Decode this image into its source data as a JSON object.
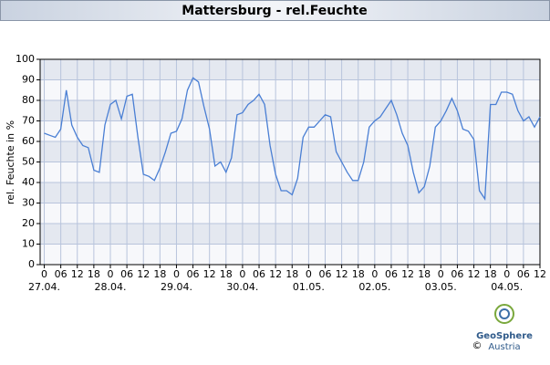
{
  "chart_data": {
    "type": "line",
    "title": "Mattersburg - rel.Feuchte",
    "y_label": "rel. Feuchte in %",
    "x": [
      0,
      2,
      4,
      6,
      8,
      10,
      12,
      14,
      16,
      18,
      20,
      22,
      24,
      26,
      28,
      30,
      32,
      34,
      36,
      38,
      40,
      42,
      44,
      46,
      48,
      50,
      52,
      54,
      56,
      58,
      60,
      62,
      64,
      66,
      68,
      70,
      72,
      74,
      76,
      78,
      80,
      82,
      84,
      86,
      88,
      90,
      92,
      94,
      96,
      98,
      100,
      102,
      104,
      106,
      108,
      110,
      112,
      114,
      116,
      118,
      120,
      122,
      124,
      126,
      128,
      130,
      132,
      134,
      136,
      138,
      140,
      142,
      144,
      146,
      148,
      150,
      152,
      154,
      156,
      158,
      160,
      162,
      164,
      166,
      168,
      170,
      172,
      174,
      176,
      178,
      180
    ],
    "series": [
      {
        "name": "rel. Feuchte",
        "color": "#4a7fd4",
        "values": [
          64,
          63,
          62,
          66,
          85,
          68,
          62,
          58,
          57,
          46,
          45,
          68,
          78,
          80,
          71,
          82,
          83,
          62,
          44,
          43,
          41,
          47,
          55,
          64,
          65,
          71,
          85,
          91,
          89,
          77,
          66,
          48,
          50,
          45,
          52,
          73,
          74,
          78,
          80,
          83,
          78,
          58,
          44,
          36,
          36,
          34,
          42,
          62,
          67,
          67,
          70,
          73,
          72,
          55,
          50,
          45,
          41,
          41,
          50,
          67,
          70,
          72,
          76,
          80,
          73,
          64,
          58,
          45,
          35,
          38,
          48,
          67,
          70,
          75,
          81,
          75,
          66,
          65,
          61,
          36,
          32,
          78,
          78,
          84,
          84,
          83,
          75,
          70,
          72,
          67,
          72
        ]
      }
    ],
    "xlim": [
      -1.5,
      180
    ],
    "ylim": [
      0,
      100
    ],
    "yticks": [
      0,
      10,
      20,
      30,
      40,
      50,
      60,
      70,
      80,
      90,
      100
    ],
    "xticks": [
      {
        "value": 0,
        "label": "0"
      },
      {
        "value": 6,
        "label": "06"
      },
      {
        "value": 12,
        "label": "12"
      },
      {
        "value": 18,
        "label": "18"
      },
      {
        "value": 24,
        "label": "0"
      },
      {
        "value": 30,
        "label": "06"
      },
      {
        "value": 36,
        "label": "12"
      },
      {
        "value": 42,
        "label": "18"
      },
      {
        "value": 48,
        "label": "0"
      },
      {
        "value": 54,
        "label": "06"
      },
      {
        "value": 60,
        "label": "12"
      },
      {
        "value": 66,
        "label": "18"
      },
      {
        "value": 72,
        "label": "0"
      },
      {
        "value": 78,
        "label": "06"
      },
      {
        "value": 84,
        "label": "12"
      },
      {
        "value": 90,
        "label": "18"
      },
      {
        "value": 96,
        "label": "0"
      },
      {
        "value": 102,
        "label": "06"
      },
      {
        "value": 108,
        "label": "12"
      },
      {
        "value": 114,
        "label": "18"
      },
      {
        "value": 120,
        "label": "0"
      },
      {
        "value": 126,
        "label": "06"
      },
      {
        "value": 132,
        "label": "12"
      },
      {
        "value": 138,
        "label": "18"
      },
      {
        "value": 144,
        "label": "0"
      },
      {
        "value": 150,
        "label": "06"
      },
      {
        "value": 156,
        "label": "12"
      },
      {
        "value": 162,
        "label": "18"
      },
      {
        "value": 168,
        "label": "0"
      },
      {
        "value": 174,
        "label": "06"
      },
      {
        "value": 180,
        "label": "12"
      }
    ],
    "day_labels": [
      {
        "value": 0,
        "label": "27.04."
      },
      {
        "value": 24,
        "label": "28.04."
      },
      {
        "value": 48,
        "label": "29.04."
      },
      {
        "value": 72,
        "label": "30.04."
      },
      {
        "value": 96,
        "label": "01.05."
      },
      {
        "value": 120,
        "label": "02.05."
      },
      {
        "value": 144,
        "label": "03.05."
      },
      {
        "value": 168,
        "label": "04.05."
      }
    ],
    "grid": true,
    "logo_name": "GeoSphere",
    "logo_sub": "Austria",
    "copyright": "©"
  }
}
